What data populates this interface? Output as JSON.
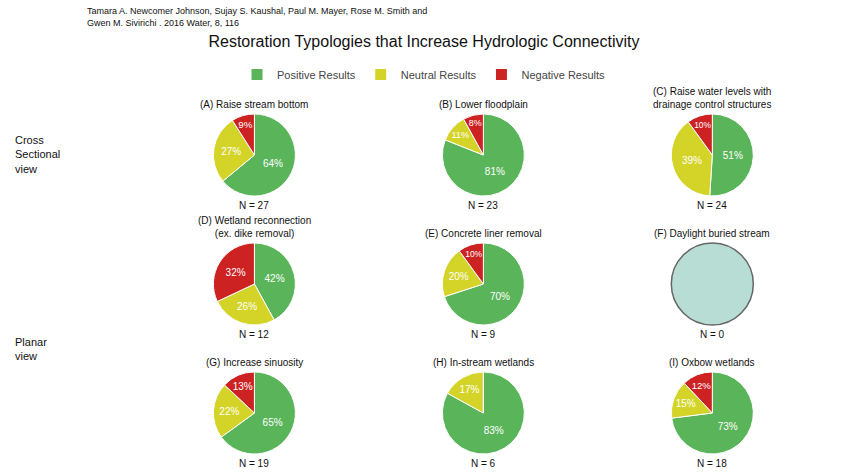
{
  "title": "Restoration Typologies that Increase Hydrologic Connectivity",
  "subtitle": "Tamara A. Newcomer Johnson, Sujay S. Kaushal, Paul M. Mayer, Rose M. Smith and\nGwen M. Sivirichi . 2016 Water, 8, 116",
  "legend": "top",
  "annotations": [
    "Cross\nSectional\nview",
    "Planar\nview"
  ],
  "chart_data": [
    {
      "type": "pie",
      "title": "(A) Raise stream bottom",
      "categories": [
        "Positive Results",
        "Neutral Results",
        "Negative Results"
      ],
      "values": [
        64,
        27,
        9
      ],
      "colors": [
        "#5ab55a",
        "#d4d428",
        "#cc2222"
      ],
      "value_labels": [
        "64%",
        "27%",
        "9%"
      ],
      "data_labels": true,
      "annotations": [
        "N = 27"
      ]
    },
    {
      "type": "pie",
      "title": "(B) Lower floodplain",
      "categories": [
        "Positive Results",
        "Neutral Results",
        "Negative Results"
      ],
      "values": [
        81,
        11,
        8
      ],
      "colors": [
        "#5ab55a",
        "#d4d428",
        "#cc2222"
      ],
      "value_labels": [
        "81%",
        "11%",
        "8%"
      ],
      "data_labels": true,
      "annotations": [
        "N = 23"
      ]
    },
    {
      "type": "pie",
      "title": "(C) Raise water levels with\ndrainage control structures",
      "categories": [
        "Positive Results",
        "Neutral Results",
        "Negative Results"
      ],
      "values": [
        51,
        39,
        10
      ],
      "colors": [
        "#5ab55a",
        "#d4d428",
        "#cc2222"
      ],
      "value_labels": [
        "51%",
        "39%",
        "10%"
      ],
      "data_labels": true,
      "annotations": [
        "N = 24"
      ]
    },
    {
      "type": "pie",
      "title": "(D) Wetland reconnection\n(ex. dike removal)",
      "categories": [
        "Positive Results",
        "Neutral Results",
        "Negative Results"
      ],
      "values": [
        42,
        26,
        32
      ],
      "colors": [
        "#5ab55a",
        "#d4d428",
        "#cc2222"
      ],
      "value_labels": [
        "42%",
        "26%",
        "32%"
      ],
      "data_labels": true,
      "annotations": [
        "N = 12"
      ]
    },
    {
      "type": "pie",
      "title": "(E) Concrete liner removal",
      "categories": [
        "Positive Results",
        "Neutral Results",
        "Negative Results"
      ],
      "values": [
        70,
        20,
        10
      ],
      "colors": [
        "#5ab55a",
        "#d4d428",
        "#cc2222"
      ],
      "value_labels": [
        "70%",
        "20%",
        "10%"
      ],
      "data_labels": true,
      "annotations": [
        "N = 9"
      ]
    },
    {
      "type": "pie",
      "title": "(F) Daylight buried stream",
      "values": [
        100
      ],
      "colors": [
        "#b8ddd5"
      ],
      "data_labels": false,
      "annotations": [
        "N = 0"
      ]
    },
    {
      "type": "pie",
      "title": "(G) Increase sinuosity",
      "categories": [
        "Positive Results",
        "Neutral Results",
        "Negative Results"
      ],
      "values": [
        65,
        22,
        13
      ],
      "colors": [
        "#5ab55a",
        "#d4d428",
        "#cc2222"
      ],
      "value_labels": [
        "65%",
        "22%",
        "13%"
      ],
      "data_labels": true,
      "annotations": [
        "N = 19"
      ]
    },
    {
      "type": "pie",
      "title": "(H) In-stream wetlands",
      "categories": [
        "Positive Results",
        "Neutral Results",
        "Negative Results"
      ],
      "values": [
        83,
        17,
        0
      ],
      "colors": [
        "#5ab55a",
        "#d4d428",
        "#cc2222"
      ],
      "value_labels": [
        "83%",
        "17%",
        null
      ],
      "data_labels": true,
      "annotations": [
        "N = 6"
      ]
    },
    {
      "type": "pie",
      "title": "(I) Oxbow wetlands",
      "categories": [
        "Positive Results",
        "Neutral Results",
        "Negative Results"
      ],
      "values": [
        73,
        15,
        12
      ],
      "colors": [
        "#5ab55a",
        "#d4d428",
        "#cc2222"
      ],
      "value_labels": [
        "73%",
        "15%",
        "12%"
      ],
      "data_labels": true,
      "annotations": [
        "N = 18"
      ]
    }
  ]
}
